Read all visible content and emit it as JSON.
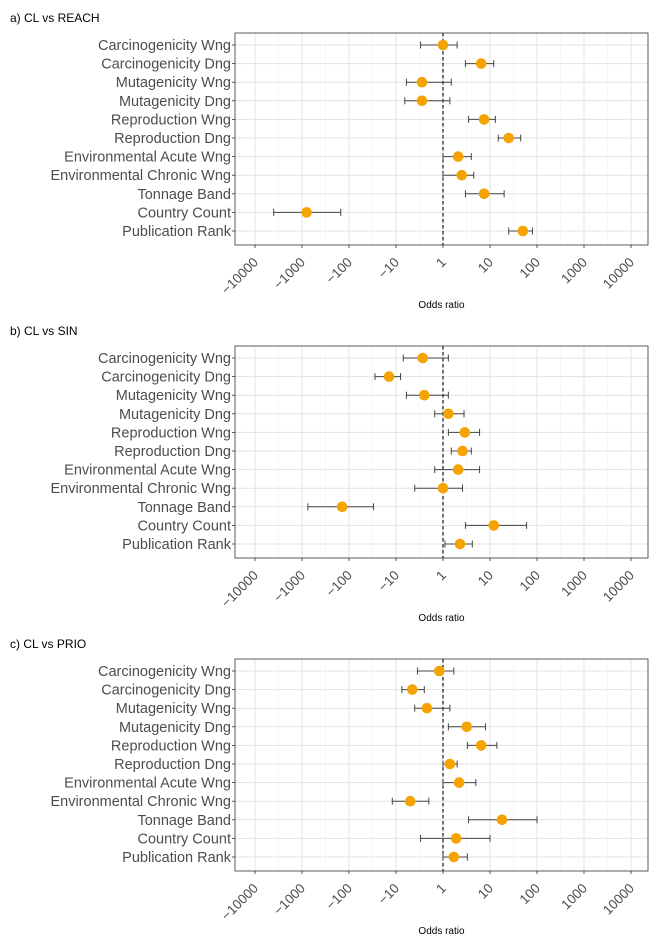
{
  "chart_data": [
    {
      "type": "forest",
      "title": "a) CL vs REACH",
      "xlabel": "Odds ratio",
      "x_scale": "signed-log",
      "x_ticks": [
        "-10000",
        "-1000",
        "-100",
        "-10",
        "1",
        "10",
        "100",
        "1000",
        "10000"
      ],
      "reference_line": 1,
      "marker_color": "#f5a300",
      "grid": true,
      "categories": [
        "Carcinogenicity Wng",
        "Carcinogenicity Dng",
        "Mutagenicity Wng",
        "Mutagenicity Dng",
        "Reproduction Wng",
        "Reproduction Dng",
        "Environmental Acute Wng",
        "Environmental Chronic Wng",
        "Tonnage Band",
        "Country Count",
        "Publication Rank"
      ],
      "estimate": [
        1,
        6.5,
        -2.8,
        -2.8,
        7.5,
        25,
        2.1,
        2.5,
        7.5,
        -800,
        50
      ],
      "lower": [
        -3,
        3,
        -6,
        -6.5,
        3.5,
        15,
        1,
        1,
        3,
        -4000,
        25
      ],
      "upper": [
        2,
        12,
        1.5,
        1.4,
        13,
        45,
        4,
        4.5,
        20,
        -150,
        80
      ]
    },
    {
      "type": "forest",
      "title": "b) CL vs SIN",
      "xlabel": "Odds ratio",
      "x_scale": "signed-log",
      "x_ticks": [
        "-10000",
        "-1000",
        "-100",
        "-10",
        "1",
        "10",
        "100",
        "1000",
        "10000"
      ],
      "reference_line": 1,
      "marker_color": "#f5a300",
      "grid": true,
      "categories": [
        "Carcinogenicity Wng",
        "Carcinogenicity Dng",
        "Mutagenicity Wng",
        "Mutagenicity Dng",
        "Reproduction Wng",
        "Reproduction Dng",
        "Environmental Acute Wng",
        "Environmental Chronic Wng",
        "Tonnage Band",
        "Country Count",
        "Publication Rank"
      ],
      "estimate": [
        -2.7,
        -14,
        -2.5,
        1.3,
        2.9,
        2.6,
        2.1,
        1,
        -140,
        12,
        2.3
      ],
      "lower": [
        -7,
        -28,
        -6,
        -1.5,
        1.3,
        1.5,
        -1.5,
        -4,
        -750,
        3,
        1.1
      ],
      "upper": [
        1.3,
        -8,
        1.3,
        2.8,
        6,
        4,
        6,
        2.6,
        -30,
        60,
        4.2
      ]
    },
    {
      "type": "forest",
      "title": "c) CL vs PRIO",
      "xlabel": "Odds ratio",
      "x_scale": "signed-log",
      "x_ticks": [
        "-10000",
        "-1000",
        "-100",
        "-10",
        "1",
        "10",
        "100",
        "1000",
        "10000"
      ],
      "reference_line": 1,
      "marker_color": "#f5a300",
      "grid": true,
      "categories": [
        "Carcinogenicity Wng",
        "Carcinogenicity Dng",
        "Mutagenicity Wng",
        "Mutagenicity Dng",
        "Reproduction Wng",
        "Reproduction Dng",
        "Environmental Acute Wng",
        "Environmental Chronic Wng",
        "Tonnage Band",
        "Country Count",
        "Publication Rank"
      ],
      "estimate": [
        -1.2,
        -4.5,
        -2.2,
        3.2,
        6.5,
        1.4,
        2.2,
        -5,
        18,
        1.9,
        1.7
      ],
      "lower": [
        -3.5,
        -7.5,
        -4,
        1.3,
        3.3,
        1,
        1,
        -12,
        3.5,
        -3,
        -1
      ],
      "upper": [
        1.7,
        -2.5,
        1.4,
        8,
        14,
        2,
        5,
        -2,
        100,
        10,
        3.3
      ]
    }
  ]
}
